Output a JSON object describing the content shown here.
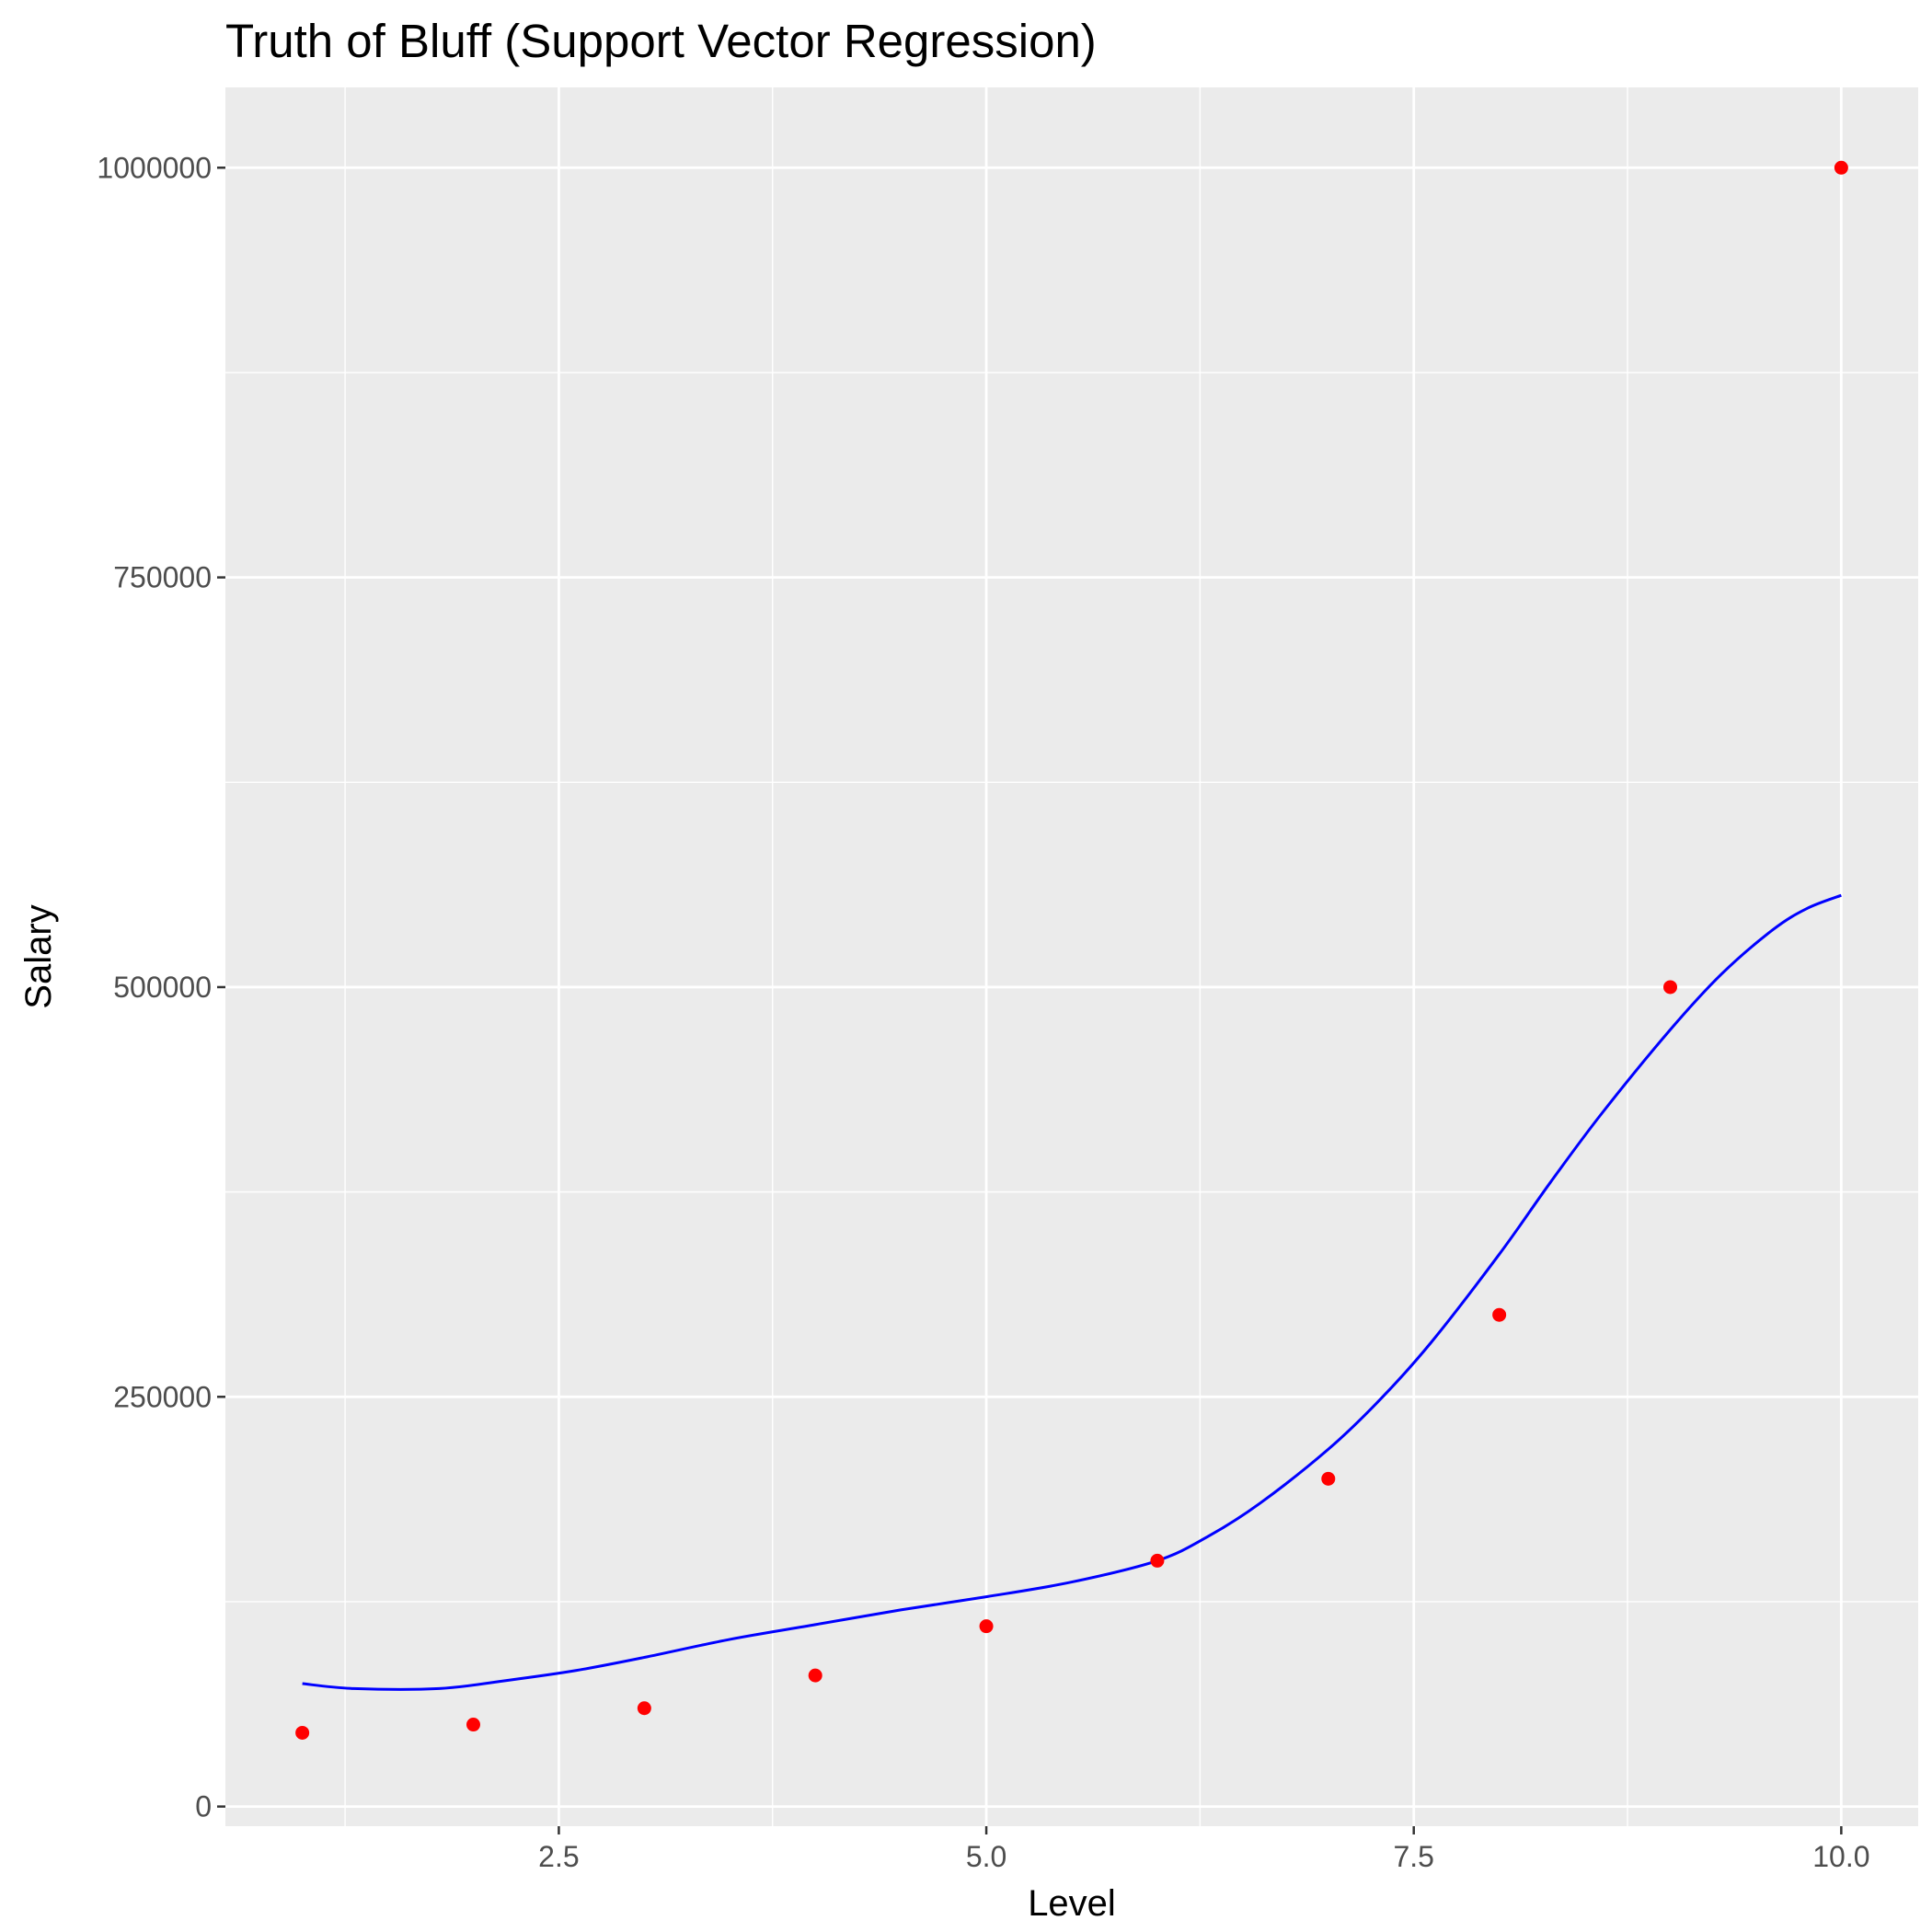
{
  "chart_data": {
    "type": "scatter",
    "title": "Truth of Bluff (Support Vector Regression)",
    "xlabel": "Level",
    "ylabel": "Salary",
    "xlim": [
      0.55,
      10.45
    ],
    "ylim": [
      -12000,
      1049000
    ],
    "x_ticks": [
      2.5,
      5.0,
      7.5,
      10.0
    ],
    "x_tick_labels": [
      "2.5",
      "5.0",
      "7.5",
      "10.0"
    ],
    "y_ticks": [
      0,
      250000,
      500000,
      750000,
      1000000
    ],
    "y_tick_labels": [
      "0",
      "250000",
      "500000",
      "750000",
      "1000000"
    ],
    "grid": true,
    "legend": "none",
    "panel_color": "#ebebeb",
    "grid_color": "#ffffff",
    "point_color": "#ff0000",
    "line_color": "#0000ff",
    "series": [
      {
        "type": "scatter",
        "x": [
          1,
          2,
          3,
          4,
          5,
          6,
          7,
          8,
          9,
          10
        ],
        "y": [
          45000,
          50000,
          60000,
          80000,
          110000,
          150000,
          200000,
          300000,
          500000,
          1000000
        ]
      },
      {
        "type": "line",
        "x": [
          1.0,
          1.3,
          1.8,
          2.2,
          2.6,
          3.0,
          3.5,
          4.0,
          4.5,
          5.0,
          5.5,
          6.0,
          6.3,
          6.6,
          7.0,
          7.3,
          7.6,
          8.0,
          8.3,
          8.6,
          9.0,
          9.3,
          9.6,
          9.8,
          10.0
        ],
        "y": [
          75000,
          72000,
          72000,
          77000,
          83000,
          91000,
          102000,
          111000,
          120000,
          128000,
          137000,
          150000,
          165000,
          185000,
          218000,
          248000,
          283000,
          337000,
          381000,
          423000,
          474000,
          508000,
          535000,
          548000,
          556000
        ]
      }
    ]
  }
}
